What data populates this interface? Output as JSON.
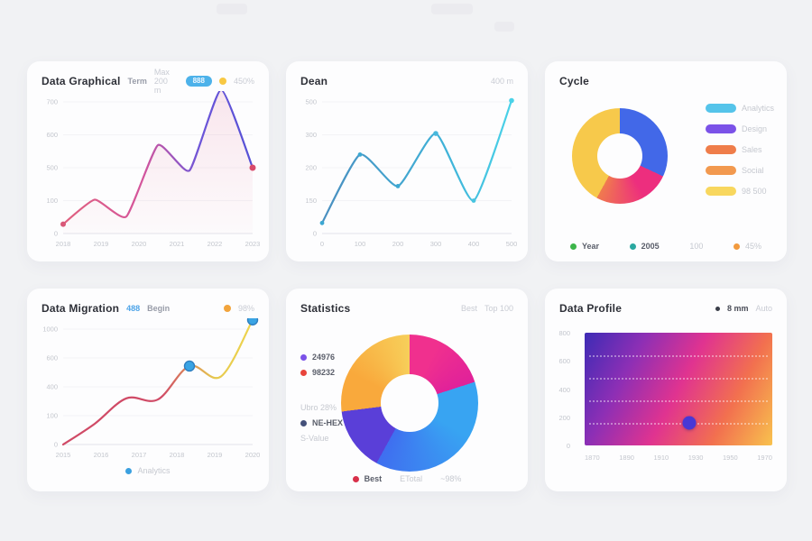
{
  "cards": [
    {
      "title": "Data Graphical",
      "subtitle": "Term",
      "subtitle2": "Max 200 m",
      "badge": "888",
      "badge2": "450%"
    },
    {
      "title": "Dean",
      "right": "400 m"
    },
    {
      "title": "Cycle"
    },
    {
      "title": "Data Migration",
      "badge": "488",
      "subtitle": "Begin",
      "badge2": "98%"
    },
    {
      "title": "Statistics",
      "right": "Best",
      "right2": "Top 100"
    },
    {
      "title": "Data Profile",
      "right": "8 mm",
      "right2": "Auto"
    }
  ],
  "colors": {
    "page_bg": "#f1f2f4",
    "card_bg": "#fdfdfe",
    "accent_blue": "#4db2ea",
    "accent_yellow": "#f8c843"
  },
  "chart_data": [
    {
      "type": "line",
      "title": "Data Graphical",
      "x": [
        "2018",
        "2019",
        "2020",
        "2021",
        "2022",
        "2023"
      ],
      "yticks": [
        "700",
        "600",
        "500",
        "100",
        "0"
      ],
      "ylim": [
        0,
        700
      ],
      "values": [
        50,
        180,
        90,
        470,
        335,
        765,
        350
      ],
      "line_gradient": [
        [
          "#e0607e",
          0
        ],
        [
          "#d4559c",
          0.42
        ],
        [
          "#6d55d8",
          0.72
        ],
        [
          "#5551d6",
          1
        ]
      ],
      "area": true,
      "area_color": "#e0608a",
      "markers": [
        {
          "index": 0,
          "color": "#d85878",
          "r": 3
        },
        {
          "index": 6,
          "color": "#d84a6a",
          "r": 3.5
        }
      ],
      "tension": 0.5,
      "grid": true,
      "legend_position": "none"
    },
    {
      "type": "line",
      "title": "Dean",
      "x": [
        "0",
        "100",
        "200",
        "300",
        "400",
        "500"
      ],
      "yticks": [
        "500",
        "300",
        "200",
        "150",
        "0"
      ],
      "ylim": [
        0,
        500
      ],
      "values": [
        40,
        300,
        180,
        380,
        125,
        505
      ],
      "line_gradient": [
        [
          "#4a8fc0",
          0
        ],
        [
          "#3fb2d8",
          0.65
        ],
        [
          "#4ad2e8",
          1
        ]
      ],
      "area": false,
      "markers": [
        {
          "index": 0,
          "color": "#3da8d2",
          "r": 2.4
        },
        {
          "index": 1,
          "color": "#3da8d2",
          "r": 2.4
        },
        {
          "index": 2,
          "color": "#3da8d2",
          "r": 2.4
        },
        {
          "index": 3,
          "color": "#48b8dc",
          "r": 2.8
        },
        {
          "index": 4,
          "color": "#48c4e0",
          "r": 2.4
        },
        {
          "index": 5,
          "color": "#4ad2e8",
          "r": 2.8
        }
      ],
      "tension": 0.55,
      "grid": true,
      "legend_position": "none"
    },
    {
      "type": "donut",
      "title": "Cycle",
      "hole": 0.47,
      "slices": [
        {
          "label": "Blue",
          "value": 32,
          "color": "#4268e8"
        },
        {
          "label": "Pink",
          "value": 26,
          "color": "#ed2e7e",
          "color2": "#f07a4e"
        },
        {
          "label": "Yellow",
          "value": 42,
          "color": "#f7c94b"
        }
      ],
      "legend_position": "right",
      "legend": [
        {
          "color": "#55c4ea",
          "label": "Analytics"
        },
        {
          "color": "#7b52e8",
          "label": "Design"
        },
        {
          "color": "#ef7d4a",
          "label": "Sales"
        },
        {
          "color": "#f2994f",
          "label": "Social"
        },
        {
          "color": "#f8d75e",
          "label": "98 500"
        }
      ],
      "mini_legend": [
        {
          "color": "#3cb54a",
          "label": "Year",
          "dark": true
        },
        {
          "color": "#2aa8a0",
          "label": "2005",
          "dark": true
        },
        {
          "color": null,
          "label": "100"
        },
        {
          "color": "#f29a3e",
          "label": "45%"
        }
      ]
    },
    {
      "type": "line",
      "title": "Data Migration",
      "x": [
        "2015",
        "2016",
        "2017",
        "2018",
        "2019",
        "2020"
      ],
      "yticks": [
        "1000",
        "600",
        "400",
        "100",
        "0"
      ],
      "ylim": [
        0,
        1000
      ],
      "values": [
        0,
        180,
        400,
        390,
        680,
        590,
        1080
      ],
      "line_gradient": [
        [
          "#d04a66",
          0
        ],
        [
          "#d04a66",
          0.52
        ],
        [
          "#e6c94e",
          0.8
        ],
        [
          "#eed44e",
          1
        ]
      ],
      "area": false,
      "markers": [
        {
          "index": 4,
          "color": "#3aa4e4",
          "r": 5.5,
          "ring": "#2f7fc0"
        },
        {
          "index": 6,
          "color": "#3aa4e4",
          "r": 5.5,
          "ring": "#2f7fc0"
        }
      ],
      "tension": 1,
      "grid": true,
      "legend_position": "bottom",
      "legend_bottom": [
        {
          "color": "#3aa0e0",
          "label": "Analytics"
        }
      ]
    },
    {
      "type": "donut",
      "title": "Statistics",
      "hole": 0.42,
      "slices": [
        {
          "label": "Magenta",
          "value": 20,
          "color": "#f0308e",
          "color2": "#e0219a"
        },
        {
          "label": "Blue",
          "value": 38,
          "color": "#38a4f2",
          "color2": "#3f6ef0"
        },
        {
          "label": "Indigo",
          "value": 15,
          "color": "#5a3fd8"
        },
        {
          "label": "Amber",
          "value": 27,
          "color": "#f9a93c",
          "color2": "#f7cf5a"
        }
      ],
      "legend_position": "left",
      "legend_left": [
        {
          "color": "#7b52e8",
          "label": "24976",
          "dark": true
        },
        {
          "color": "#e8443c",
          "label": "98232",
          "dark": true
        },
        {
          "color": null,
          "label": "Ubro 28%",
          "gap": true
        },
        {
          "color": "#44507a",
          "label": "NE-HEX",
          "dark": true
        },
        {
          "color": null,
          "label": "S-Value"
        }
      ],
      "legend_bottom": [
        {
          "color": "#d8304a",
          "label": "Best",
          "dark": true
        },
        {
          "color": null,
          "label": "ETotal"
        },
        {
          "color": null,
          "label": "~98%"
        }
      ]
    },
    {
      "type": "heatmap",
      "title": "Data Profile",
      "x": [
        "1870",
        "1890",
        "1910",
        "1930",
        "1950",
        "1970"
      ],
      "yticks": [
        "800",
        "600",
        "400",
        "200",
        "0"
      ],
      "gradient": [
        "#3d2bb5",
        "#8d2fb5",
        "#e03390",
        "#f2704f",
        "#f8c24e"
      ],
      "rows": [
        0.2,
        0.4,
        0.6,
        0.8
      ],
      "dot": {
        "x": 0.56,
        "y": 0.8,
        "color": "#4838d6"
      },
      "legend_position": "none"
    }
  ]
}
